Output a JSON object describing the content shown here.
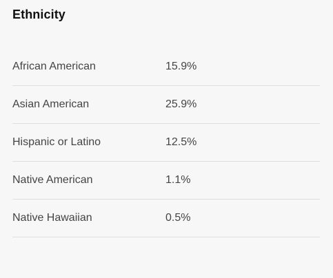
{
  "title": "Ethnicity",
  "rows": [
    {
      "label": "African American",
      "value": "15.9%"
    },
    {
      "label": "Asian American",
      "value": "25.9%"
    },
    {
      "label": "Hispanic or Latino",
      "value": "12.5%"
    },
    {
      "label": "Native American",
      "value": "1.1%"
    },
    {
      "label": "Native Hawaiian",
      "value": "0.5%"
    }
  ]
}
